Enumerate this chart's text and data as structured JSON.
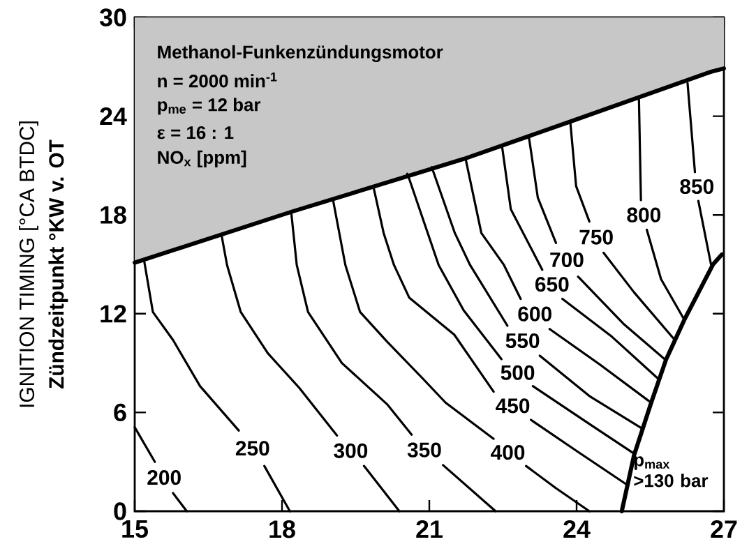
{
  "chart_data": {
    "type": "line",
    "ylabel": "Zündzeitpunkt °KW v. OT",
    "xlim": [
      15,
      27
    ],
    "ylim": [
      0,
      30
    ],
    "xticks": [
      15,
      18,
      21,
      24,
      27
    ],
    "yticks": [
      0,
      6,
      12,
      18,
      24,
      30
    ],
    "annotations": [
      "IGNITION TIMING [°CA BTDC]",
      "Methanol-Funkenzündungsmotor",
      "n = 2000 min$^{-1}$",
      "p$_{me}$ = 12 bar",
      "ε = 16 : 1",
      "NO$_{x}$ [ppm]",
      "p$_{max}$ >130 bar"
    ],
    "series": [
      {
        "color": "#000000",
        "x": [
          15,
          18.2,
          21.7,
          23.9,
          26.74,
          27
        ],
        "values": [
          15.1,
          18.2,
          21.4,
          23.7,
          26.7,
          26.9
        ],
        "lower": [
          15.1,
          18.2,
          21.4,
          23.7,
          26.7,
          26.9
        ],
        "upper": [
          30,
          30,
          30,
          30,
          30,
          30
        ]
      },
      {
        "color": "#000000",
        "x": [
          24.92,
          25.17,
          25.52,
          25.82,
          26.19,
          26.78,
          26.96
        ],
        "values": [
          0,
          3.4,
          6.6,
          9.2,
          11.6,
          15.0,
          15.6
        ]
      },
      {
        "name": "200",
        "color": "#000000",
        "x": [
          15,
          15.41,
          15.6,
          15.78,
          16.06
        ],
        "values": [
          5.1,
          3.0,
          null,
          1.1,
          0
        ]
      },
      {
        "name": "250",
        "color": "#000000",
        "x": [
          15.19,
          15.37,
          15.78,
          16.33,
          17.12,
          17.4,
          17.64,
          18.16
        ],
        "values": [
          15.25,
          12.1,
          10.4,
          7.6,
          4.9,
          null,
          2.75,
          0
        ]
      },
      {
        "name": "300",
        "color": "#000000",
        "x": [
          16.77,
          16.88,
          17.16,
          17.71,
          18.35,
          19.12,
          19.4,
          19.67,
          20.39
        ],
        "values": [
          16.75,
          14.96,
          12.1,
          9.6,
          7.5,
          4.6,
          null,
          2.75,
          0
        ]
      },
      {
        "name": "350",
        "color": "#000000",
        "x": [
          18.19,
          18.3,
          18.53,
          19.22,
          20.14,
          20.64,
          20.9,
          21.28,
          22.35
        ],
        "values": [
          18.1,
          14.96,
          12.1,
          9.0,
          6.5,
          4.65,
          null,
          2.8,
          0
        ]
      },
      {
        "name": "400",
        "color": "#000000",
        "x": [
          19.04,
          19.29,
          19.59,
          20.14,
          20.87,
          21.33,
          22.31,
          22.6,
          22.97,
          23.58,
          24.26
        ],
        "values": [
          18.9,
          14.96,
          12.1,
          10.3,
          8.05,
          6.6,
          4.4,
          null,
          2.75,
          1.4,
          0
        ]
      },
      {
        "name": "450",
        "color": "#000000",
        "x": [
          19.87,
          20.07,
          20.28,
          20.59,
          21.51,
          22.31,
          22.7,
          23.07,
          24.03,
          25.03
        ],
        "values": [
          19.6,
          16.9,
          14.96,
          12.98,
          10.72,
          7.26,
          null,
          5.55,
          3.6,
          1.6
        ]
      },
      {
        "name": "500",
        "color": "#000000",
        "x": [
          20.55,
          20.59,
          21.19,
          21.7,
          22.47,
          22.8,
          23.11,
          24.26,
          25.17
        ],
        "values": [
          20.5,
          20.2,
          14.96,
          12.2,
          9.24,
          null,
          7.6,
          5.3,
          3.5
        ]
      },
      {
        "name": "550",
        "color": "#000000",
        "x": [
          21.05,
          21.52,
          21.83,
          22.59,
          22.9,
          23.25,
          24.26,
          25.31
        ],
        "values": [
          20.9,
          16.9,
          14.96,
          11.27,
          null,
          9.45,
          7.0,
          5.07
        ]
      },
      {
        "name": "600",
        "color": "#000000",
        "x": [
          21.74,
          22.06,
          22.52,
          22.86,
          23.15,
          23.45,
          24.48,
          25.47
        ],
        "values": [
          21.4,
          16.9,
          14.96,
          12.9,
          null,
          11.07,
          8.9,
          6.7
        ]
      },
      {
        "name": "650",
        "color": "#000000",
        "x": [
          22.48,
          22.66,
          23.3,
          23.5,
          23.71,
          24.72,
          25.68
        ],
        "values": [
          22.2,
          18.35,
          14.67,
          null,
          12.9,
          10.6,
          8.0
        ]
      },
      {
        "name": "700",
        "color": "#000000",
        "x": [
          23.03,
          23.21,
          23.58,
          23.8,
          24.03,
          24.95,
          25.82
        ],
        "values": [
          22.7,
          19.05,
          16.3,
          null,
          14.25,
          11.4,
          9.17
        ]
      },
      {
        "name": "750",
        "color": "#000000",
        "x": [
          23.87,
          23.99,
          24.26,
          24.4,
          24.55,
          25.17,
          26.0
        ],
        "values": [
          23.7,
          19.75,
          17.6,
          null,
          15.7,
          13.3,
          10.4
        ]
      },
      {
        "name": "800",
        "color": "#000000",
        "x": [
          25.27,
          25.31,
          25.37,
          25.43,
          25.72,
          26.19
        ],
        "values": [
          25.0,
          18.9,
          null,
          17.1,
          14.1,
          11.65
        ]
      },
      {
        "name": "850",
        "color": "#000000",
        "x": [
          26.26,
          26.41,
          26.45,
          26.48,
          26.74
        ],
        "values": [
          26.0,
          20.6,
          null,
          18.85,
          14.96
        ]
      }
    ]
  }
}
